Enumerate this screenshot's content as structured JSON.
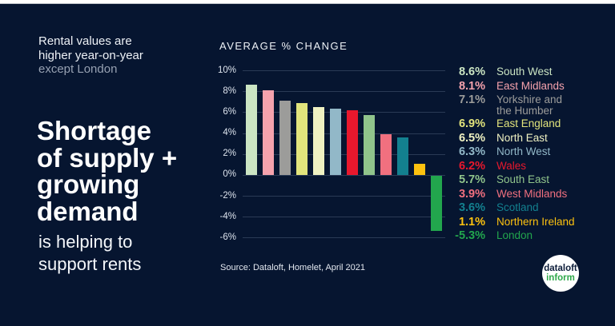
{
  "colors": {
    "background": "#061530",
    "top_strip": "#ffffff",
    "gridline": "#2a3a55",
    "axis_text": "#dce3ed",
    "title_text": "#edf1f6",
    "logo_navy": "#0d1d3a",
    "logo_green": "#2fa84a"
  },
  "left_panel": {
    "intro_lines": [
      "Rental values are",
      "higher year-on-year"
    ],
    "intro_muted": "except London",
    "headline_lines": [
      "Shortage",
      "of supply +",
      "growing",
      "demand"
    ],
    "support_lines": [
      "is helping to",
      "support rents"
    ]
  },
  "chart": {
    "title": "AVERAGE % CHANGE",
    "source": "Source: Dataloft, Homelet, April 2021"
  },
  "chart_data": {
    "type": "bar",
    "title": "AVERAGE % CHANGE",
    "categories": [
      "South West",
      "East Midlands",
      "Yorkshire and the Humber",
      "East England",
      "North East",
      "North West",
      "Wales",
      "South East",
      "West Midlands",
      "Scotland",
      "Northern Ireland",
      "London"
    ],
    "values": [
      8.6,
      8.1,
      7.1,
      6.9,
      6.5,
      6.3,
      6.2,
      5.7,
      3.9,
      3.6,
      1.1,
      -5.3
    ],
    "bar_colors": [
      "#cbe5c3",
      "#f5a2ad",
      "#9c9c9a",
      "#e2e47c",
      "#eff1c2",
      "#92b8c8",
      "#e8182d",
      "#90c48b",
      "#f1707f",
      "#13808f",
      "#fdc20f",
      "#22a64d"
    ],
    "xlabel": "",
    "ylabel": "",
    "ylim": [
      -6,
      10
    ],
    "ytick_step": 2,
    "yticks": [
      10,
      8,
      6,
      4,
      2,
      0,
      -2,
      -4,
      -6
    ],
    "ytick_labels": [
      "10%",
      "8%",
      "6%",
      "4%",
      "2%",
      "0%",
      "-2%",
      "-4%",
      "-6%"
    ],
    "grid": true,
    "legend_position": "right"
  },
  "legend": {
    "items": [
      {
        "value": "8.6%",
        "label_lines": [
          "South West"
        ],
        "color": "#cbe5c3"
      },
      {
        "value": "8.1%",
        "label_lines": [
          "East Midlands"
        ],
        "color": "#f5a2ad"
      },
      {
        "value": "7.1%",
        "label_lines": [
          "Yorkshire and",
          "the Humber"
        ],
        "color": "#9c9c9a"
      },
      {
        "value": "6.9%",
        "label_lines": [
          "East England"
        ],
        "color": "#e2e47c"
      },
      {
        "value": "6.5%",
        "label_lines": [
          "North East"
        ],
        "color": "#eff1c2"
      },
      {
        "value": "6.3%",
        "label_lines": [
          "North West"
        ],
        "color": "#92b8c8"
      },
      {
        "value": "6.2%",
        "label_lines": [
          "Wales"
        ],
        "color": "#e8182d"
      },
      {
        "value": "5.7%",
        "label_lines": [
          "South East"
        ],
        "color": "#90c48b"
      },
      {
        "value": "3.9%",
        "label_lines": [
          "West Midlands"
        ],
        "color": "#f1707f"
      },
      {
        "value": "3.6%",
        "label_lines": [
          "Scotland"
        ],
        "color": "#13808f"
      },
      {
        "value": "1.1%",
        "label_lines": [
          "Northern Ireland"
        ],
        "color": "#fdc20f"
      },
      {
        "value": "-5.3%",
        "label_lines": [
          "London"
        ],
        "color": "#22a64d"
      }
    ]
  },
  "logo": {
    "line1": "dataloft",
    "line2": "inform"
  }
}
